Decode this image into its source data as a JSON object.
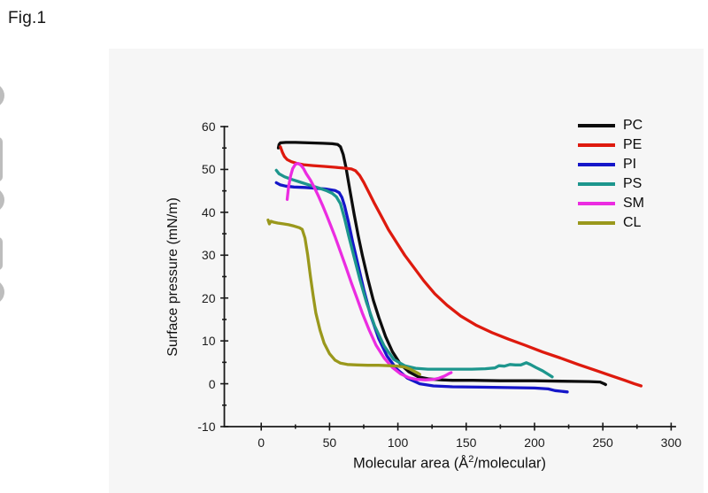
{
  "page": {
    "figure_label": "Fig.1"
  },
  "chart_data": {
    "type": "line",
    "title": "",
    "ylabel": "Surface pressure (mN/m)",
    "xlabel_parts": {
      "prefix": "Molecular area (Å",
      "sup": "2",
      "suffix": "/molecular)"
    },
    "xlim": [
      -27,
      303
    ],
    "ylim": [
      -10,
      60
    ],
    "xticks": [
      0,
      50,
      100,
      150,
      200,
      250,
      300
    ],
    "yticks": [
      -10,
      0,
      10,
      20,
      30,
      40,
      50,
      60
    ],
    "x_minor_ticks": [
      25,
      75,
      125,
      175,
      225,
      275
    ],
    "y_minor_ticks": [
      -5,
      5,
      15,
      25,
      35,
      45,
      55
    ],
    "grid": false,
    "legend_position": "top-right",
    "axis_color": "#1a1a1a",
    "series": [
      {
        "name": "PC",
        "color": "#0d0d0d",
        "points": [
          [
            12.5,
            55
          ],
          [
            13,
            55.8
          ],
          [
            14,
            56.2
          ],
          [
            18,
            56.3
          ],
          [
            25,
            56.3
          ],
          [
            35,
            56.2
          ],
          [
            45,
            56.1
          ],
          [
            52,
            56
          ],
          [
            56,
            55.8
          ],
          [
            58,
            55.3
          ],
          [
            60,
            53.5
          ],
          [
            62,
            50.5
          ],
          [
            65,
            45
          ],
          [
            68,
            39.5
          ],
          [
            71,
            34.5
          ],
          [
            74,
            30
          ],
          [
            78,
            24.5
          ],
          [
            82,
            19.5
          ],
          [
            86,
            15.5
          ],
          [
            91,
            11
          ],
          [
            96,
            7.5
          ],
          [
            102,
            4.5
          ],
          [
            108,
            2.8
          ],
          [
            115,
            1.6
          ],
          [
            123,
            1.1
          ],
          [
            132,
            0.9
          ],
          [
            140,
            0.8
          ],
          [
            155,
            0.8
          ],
          [
            175,
            0.7
          ],
          [
            200,
            0.7
          ],
          [
            220,
            0.6
          ],
          [
            240,
            0.5
          ],
          [
            248,
            0.4
          ],
          [
            251,
            0
          ],
          [
            252,
            -0.2
          ]
        ]
      },
      {
        "name": "PE",
        "color": "#de1a0e",
        "points": [
          [
            14,
            55.3
          ],
          [
            15.5,
            54
          ],
          [
            17,
            53
          ],
          [
            19,
            52.3
          ],
          [
            22,
            51.8
          ],
          [
            26,
            51.4
          ],
          [
            31,
            51.1
          ],
          [
            38,
            50.9
          ],
          [
            46,
            50.7
          ],
          [
            54,
            50.5
          ],
          [
            61,
            50.3
          ],
          [
            66,
            50.1
          ],
          [
            69,
            49.7
          ],
          [
            72,
            48.6
          ],
          [
            75,
            47
          ],
          [
            79,
            44.5
          ],
          [
            83,
            42
          ],
          [
            88,
            39
          ],
          [
            93,
            36
          ],
          [
            99,
            33
          ],
          [
            105,
            30
          ],
          [
            112,
            27
          ],
          [
            119,
            24
          ],
          [
            127,
            21
          ],
          [
            136,
            18.3
          ],
          [
            146,
            15.8
          ],
          [
            157,
            13.7
          ],
          [
            169,
            11.9
          ],
          [
            181,
            10.4
          ],
          [
            193,
            9
          ],
          [
            206,
            7.4
          ],
          [
            219,
            6
          ],
          [
            232,
            4.5
          ],
          [
            244,
            3.2
          ],
          [
            256,
            1.9
          ],
          [
            266,
            0.8
          ],
          [
            273,
            0
          ],
          [
            278,
            -0.5
          ]
        ]
      },
      {
        "name": "PI",
        "color": "#1516c9",
        "points": [
          [
            11,
            46.9
          ],
          [
            14,
            46.4
          ],
          [
            18,
            46.1
          ],
          [
            24,
            45.9
          ],
          [
            32,
            45.8
          ],
          [
            40,
            45.6
          ],
          [
            48,
            45.4
          ],
          [
            54,
            45.1
          ],
          [
            57,
            44.6
          ],
          [
            59,
            43.5
          ],
          [
            61,
            41.5
          ],
          [
            64,
            37.5
          ],
          [
            67,
            33
          ],
          [
            71,
            27.5
          ],
          [
            75,
            22
          ],
          [
            80,
            16
          ],
          [
            86,
            10.5
          ],
          [
            92,
            6.5
          ],
          [
            99,
            3.5
          ],
          [
            107,
            1.3
          ],
          [
            116,
            0
          ],
          [
            126,
            -0.5
          ],
          [
            140,
            -0.7
          ],
          [
            160,
            -0.8
          ],
          [
            180,
            -0.9
          ],
          [
            200,
            -1
          ],
          [
            210,
            -1.2
          ],
          [
            215,
            -1.6
          ],
          [
            221,
            -1.8
          ],
          [
            224,
            -1.9
          ]
        ]
      },
      {
        "name": "PS",
        "color": "#1d968d",
        "points": [
          [
            11,
            49.8
          ],
          [
            13,
            49
          ],
          [
            17,
            48.3
          ],
          [
            22,
            47.7
          ],
          [
            28,
            47.1
          ],
          [
            35,
            46.4
          ],
          [
            42,
            45.7
          ],
          [
            48,
            45
          ],
          [
            52,
            44.4
          ],
          [
            55,
            43.6
          ],
          [
            58,
            42
          ],
          [
            61,
            38.5
          ],
          [
            64,
            34.5
          ],
          [
            68,
            29.5
          ],
          [
            72,
            24.5
          ],
          [
            77,
            19
          ],
          [
            83,
            13.5
          ],
          [
            90,
            8.8
          ],
          [
            97,
            5.7
          ],
          [
            105,
            4.2
          ],
          [
            113,
            3.6
          ],
          [
            122,
            3.4
          ],
          [
            132,
            3.4
          ],
          [
            143,
            3.4
          ],
          [
            154,
            3.4
          ],
          [
            164,
            3.5
          ],
          [
            171,
            3.7
          ],
          [
            174,
            4.2
          ],
          [
            178,
            4.1
          ],
          [
            182,
            4.5
          ],
          [
            186,
            4.4
          ],
          [
            190,
            4.4
          ],
          [
            194,
            4.9
          ],
          [
            197,
            4.5
          ],
          [
            201,
            3.8
          ],
          [
            206,
            3
          ],
          [
            210,
            2.2
          ],
          [
            213,
            1.6
          ]
        ]
      },
      {
        "name": "SM",
        "color": "#eb2ce1",
        "points": [
          [
            19,
            43
          ],
          [
            20,
            46
          ],
          [
            21.5,
            48.5
          ],
          [
            23,
            50.2
          ],
          [
            25,
            51.2
          ],
          [
            27,
            51.4
          ],
          [
            29,
            51
          ],
          [
            31,
            50.2
          ],
          [
            33,
            49
          ],
          [
            36,
            47.5
          ],
          [
            39,
            45.7
          ],
          [
            42,
            43.7
          ],
          [
            45,
            41.5
          ],
          [
            48,
            39.2
          ],
          [
            51,
            36.8
          ],
          [
            54,
            34.3
          ],
          [
            58,
            30.8
          ],
          [
            62,
            27.2
          ],
          [
            66,
            23.5
          ],
          [
            70,
            20
          ],
          [
            74,
            16.5
          ],
          [
            79,
            12.5
          ],
          [
            84,
            9
          ],
          [
            90,
            6
          ],
          [
            96,
            3.8
          ],
          [
            102,
            2.3
          ],
          [
            108,
            1.4
          ],
          [
            114,
            1
          ],
          [
            120,
            0.9
          ],
          [
            126,
            1
          ],
          [
            130,
            1.3
          ],
          [
            134,
            1.8
          ],
          [
            137,
            2.3
          ],
          [
            139,
            2.6
          ]
        ]
      },
      {
        "name": "CL",
        "color": "#9a981c",
        "points": [
          [
            5,
            38.2
          ],
          [
            6,
            37.3
          ],
          [
            7,
            37.9
          ],
          [
            9,
            37.7
          ],
          [
            12,
            37.5
          ],
          [
            16,
            37.3
          ],
          [
            20,
            37.1
          ],
          [
            24,
            36.8
          ],
          [
            28,
            36.4
          ],
          [
            30,
            36
          ],
          [
            32,
            34
          ],
          [
            34,
            30
          ],
          [
            36,
            25
          ],
          [
            38,
            20.5
          ],
          [
            40,
            16.5
          ],
          [
            43,
            12.5
          ],
          [
            46,
            9.5
          ],
          [
            50,
            7
          ],
          [
            54,
            5.5
          ],
          [
            58,
            4.8
          ],
          [
            63,
            4.5
          ],
          [
            70,
            4.4
          ],
          [
            78,
            4.3
          ],
          [
            86,
            4.3
          ],
          [
            94,
            4.2
          ],
          [
            100,
            4.1
          ],
          [
            105,
            3.9
          ],
          [
            109,
            3.4
          ],
          [
            112,
            2.9
          ],
          [
            115,
            2.4
          ],
          [
            116,
            2.2
          ]
        ]
      }
    ]
  }
}
